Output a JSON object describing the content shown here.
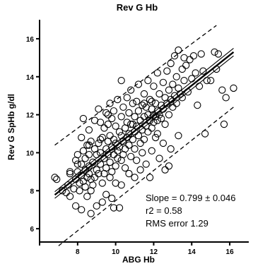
{
  "chart_data": {
    "type": "scatter",
    "title": "Rev G Hb",
    "xlabel": "ABG Hb",
    "ylabel": "Rev G SpHb g/dl",
    "xlim": [
      6,
      17
    ],
    "ylim": [
      5.3,
      17
    ],
    "xticks": [
      6,
      8,
      10,
      12,
      14,
      16
    ],
    "yticks": [
      6,
      8,
      10,
      12,
      14,
      16
    ],
    "grid": false,
    "marker": "open-circle",
    "annotations": [
      "Slope = 0.799 ± 0.046",
      "r2 = 0.58",
      "RMS error 1.29"
    ],
    "regression": {
      "slope": 0.799,
      "intercept": 2.35,
      "x_range": [
        6.8,
        16.2
      ]
    },
    "lines": {
      "fit_line": {
        "x": [
          6.8,
          16.2
        ],
        "y": [
          7.78,
          15.3
        ],
        "style": "solid"
      },
      "ci_upper": {
        "x": [
          6.8,
          16.2
        ],
        "y": [
          7.95,
          15.5
        ],
        "style": "solid"
      },
      "ci_lower": {
        "x": [
          6.8,
          16.2
        ],
        "y": [
          7.6,
          15.1
        ],
        "style": "solid"
      },
      "pi_upper": {
        "x": [
          6.8,
          15.3
        ],
        "y": [
          10.4,
          16.7
        ],
        "style": "dashed"
      },
      "pi_lower": {
        "x": [
          7.0,
          16.2
        ],
        "y": [
          5.1,
          12.4
        ],
        "style": "dashed"
      }
    },
    "points": [
      [
        6.8,
        8.7
      ],
      [
        6.9,
        8.6
      ],
      [
        7.2,
        8.0
      ],
      [
        7.4,
        7.9
      ],
      [
        7.5,
        8.3
      ],
      [
        7.6,
        8.9
      ],
      [
        7.6,
        7.7
      ],
      [
        7.8,
        8.1
      ],
      [
        7.9,
        9.6
      ],
      [
        7.9,
        8.6
      ],
      [
        7.9,
        7.2
      ],
      [
        8.0,
        9.9
      ],
      [
        8.0,
        9.0
      ],
      [
        8.1,
        8.4
      ],
      [
        8.1,
        8.0
      ],
      [
        8.2,
        10.8
      ],
      [
        8.2,
        9.4
      ],
      [
        8.2,
        8.8
      ],
      [
        8.2,
        7.0
      ],
      [
        8.3,
        11.8
      ],
      [
        8.3,
        10.1
      ],
      [
        8.3,
        8.5
      ],
      [
        8.4,
        9.7
      ],
      [
        8.4,
        9.1
      ],
      [
        8.4,
        8.2
      ],
      [
        8.5,
        10.4
      ],
      [
        8.5,
        8.7
      ],
      [
        8.5,
        7.7
      ],
      [
        8.6,
        11.2
      ],
      [
        8.6,
        9.9
      ],
      [
        8.6,
        9.3
      ],
      [
        8.6,
        8.9
      ],
      [
        8.7,
        10.6
      ],
      [
        8.7,
        8.6
      ],
      [
        8.7,
        8.0
      ],
      [
        8.7,
        6.8
      ],
      [
        8.8,
        9.5
      ],
      [
        8.8,
        8.3
      ],
      [
        8.9,
        11.7
      ],
      [
        8.9,
        10.2
      ],
      [
        8.9,
        8.7
      ],
      [
        9.0,
        9.9
      ],
      [
        9.0,
        9.1
      ],
      [
        9.0,
        7.2
      ],
      [
        9.1,
        12.3
      ],
      [
        9.1,
        10.5
      ],
      [
        9.1,
        8.9
      ],
      [
        9.2,
        11.6
      ],
      [
        9.2,
        10.0
      ],
      [
        9.2,
        9.4
      ],
      [
        9.3,
        10.8
      ],
      [
        9.3,
        8.4
      ],
      [
        9.3,
        7.4
      ],
      [
        9.4,
        11.3
      ],
      [
        9.4,
        9.7
      ],
      [
        9.4,
        8.9
      ],
      [
        9.5,
        12.1
      ],
      [
        9.5,
        10.2
      ],
      [
        9.5,
        9.2
      ],
      [
        9.5,
        7.8
      ],
      [
        9.6,
        11.5
      ],
      [
        9.6,
        10.6
      ],
      [
        9.6,
        9.9
      ],
      [
        9.7,
        12.6
      ],
      [
        9.7,
        10.9
      ],
      [
        9.7,
        9.5
      ],
      [
        9.7,
        8.7
      ],
      [
        9.8,
        11.8
      ],
      [
        9.8,
        10.3
      ],
      [
        9.8,
        9.0
      ],
      [
        9.9,
        12.2
      ],
      [
        9.9,
        10.7
      ],
      [
        9.9,
        9.9
      ],
      [
        9.9,
        7.1
      ],
      [
        10.0,
        11.4
      ],
      [
        10.0,
        10.5
      ],
      [
        10.0,
        9.3
      ],
      [
        10.0,
        8.4
      ],
      [
        10.1,
        12.8
      ],
      [
        10.1,
        10.1
      ],
      [
        10.1,
        9.7
      ],
      [
        10.2,
        11.1
      ],
      [
        10.2,
        10.3
      ],
      [
        10.2,
        7.1
      ],
      [
        10.3,
        13.8
      ],
      [
        10.3,
        11.9
      ],
      [
        10.3,
        10.9
      ],
      [
        10.3,
        9.6
      ],
      [
        10.4,
        12.4
      ],
      [
        10.4,
        10.6
      ],
      [
        10.4,
        9.9
      ],
      [
        10.5,
        11.3
      ],
      [
        10.5,
        10.2
      ],
      [
        10.5,
        9.2
      ],
      [
        10.6,
        12.9
      ],
      [
        10.6,
        11.6
      ],
      [
        10.6,
        10.8
      ],
      [
        10.7,
        12.1
      ],
      [
        10.7,
        11.0
      ],
      [
        10.7,
        10.4
      ],
      [
        10.7,
        8.9
      ],
      [
        10.8,
        13.3
      ],
      [
        10.8,
        11.5
      ],
      [
        10.8,
        9.8
      ],
      [
        10.9,
        12.6
      ],
      [
        10.9,
        10.7
      ],
      [
        11.0,
        11.9
      ],
      [
        11.0,
        11.1
      ],
      [
        11.0,
        10.2
      ],
      [
        11.0,
        8.7
      ],
      [
        11.1,
        12.7
      ],
      [
        11.1,
        11.4
      ],
      [
        11.1,
        9.6
      ],
      [
        11.2,
        13.6
      ],
      [
        11.2,
        12.2
      ],
      [
        11.2,
        10.9
      ],
      [
        11.3,
        11.7
      ],
      [
        11.3,
        10.5
      ],
      [
        11.3,
        9.1
      ],
      [
        11.4,
        12.5
      ],
      [
        11.4,
        11.2
      ],
      [
        11.4,
        10.0
      ],
      [
        11.5,
        13.1
      ],
      [
        11.5,
        11.9
      ],
      [
        11.5,
        10.7
      ],
      [
        11.6,
        12.4
      ],
      [
        11.6,
        11.4
      ],
      [
        11.6,
        9.4
      ],
      [
        11.7,
        13.8
      ],
      [
        11.7,
        12.0
      ],
      [
        11.7,
        11.1
      ],
      [
        11.8,
        12.8
      ],
      [
        11.8,
        11.7
      ],
      [
        11.8,
        8.7
      ],
      [
        11.9,
        12.3
      ],
      [
        11.9,
        11.3
      ],
      [
        11.9,
        10.1
      ],
      [
        12.0,
        13.5
      ],
      [
        12.0,
        12.0
      ],
      [
        12.0,
        11.6
      ],
      [
        12.1,
        12.6
      ],
      [
        12.1,
        11.9
      ],
      [
        12.1,
        10.8
      ],
      [
        12.2,
        14.2
      ],
      [
        12.2,
        12.2
      ],
      [
        12.2,
        11.7
      ],
      [
        12.3,
        13.1
      ],
      [
        12.3,
        12.0
      ],
      [
        12.3,
        9.7
      ],
      [
        12.4,
        12.5
      ],
      [
        12.4,
        11.8
      ],
      [
        12.5,
        13.7
      ],
      [
        12.5,
        12.3
      ],
      [
        12.5,
        10.5
      ],
      [
        12.6,
        12.9
      ],
      [
        12.6,
        11.5
      ],
      [
        12.7,
        14.3
      ],
      [
        12.7,
        12.6
      ],
      [
        12.8,
        13.3
      ],
      [
        12.8,
        12.0
      ],
      [
        12.8,
        9.3
      ],
      [
        12.9,
        14.7
      ],
      [
        12.9,
        12.8
      ],
      [
        12.9,
        10.2
      ],
      [
        13.0,
        13.6
      ],
      [
        13.0,
        12.4
      ],
      [
        13.1,
        15.1
      ],
      [
        13.1,
        13.0
      ],
      [
        13.2,
        14.0
      ],
      [
        13.2,
        12.6
      ],
      [
        13.3,
        15.4
      ],
      [
        13.3,
        13.4
      ],
      [
        13.3,
        10.9
      ],
      [
        13.5,
        14.4
      ],
      [
        13.5,
        12.9
      ],
      [
        13.6,
        15.0
      ],
      [
        13.6,
        13.8
      ],
      [
        13.7,
        14.6
      ],
      [
        13.8,
        13.2
      ],
      [
        13.9,
        14.9
      ],
      [
        14.0,
        13.9
      ],
      [
        14.1,
        15.1
      ],
      [
        14.2,
        14.2
      ],
      [
        14.3,
        12.5
      ],
      [
        14.4,
        13.5
      ],
      [
        14.5,
        15.2
      ],
      [
        14.6,
        14.3
      ],
      [
        14.7,
        11.0
      ],
      [
        14.8,
        13.8
      ],
      [
        15.0,
        13.8
      ],
      [
        15.2,
        15.3
      ],
      [
        15.3,
        14.4
      ],
      [
        15.4,
        15.2
      ],
      [
        15.6,
        13.3
      ],
      [
        15.7,
        11.5
      ],
      [
        15.8,
        12.9
      ],
      [
        16.2,
        13.4
      ],
      [
        11.5,
        12.6
      ],
      [
        12.2,
        11.0
      ],
      [
        10.9,
        11.5
      ],
      [
        9.6,
        12.0
      ],
      [
        9.2,
        10.7
      ],
      [
        8.6,
        10.4
      ],
      [
        8.0,
        9.4
      ],
      [
        7.6,
        9.0
      ],
      [
        10.3,
        8.3
      ],
      [
        12.6,
        9.1
      ],
      [
        9.8,
        7.6
      ],
      [
        11.9,
        12.7
      ],
      [
        13.4,
        13.1
      ]
    ]
  }
}
